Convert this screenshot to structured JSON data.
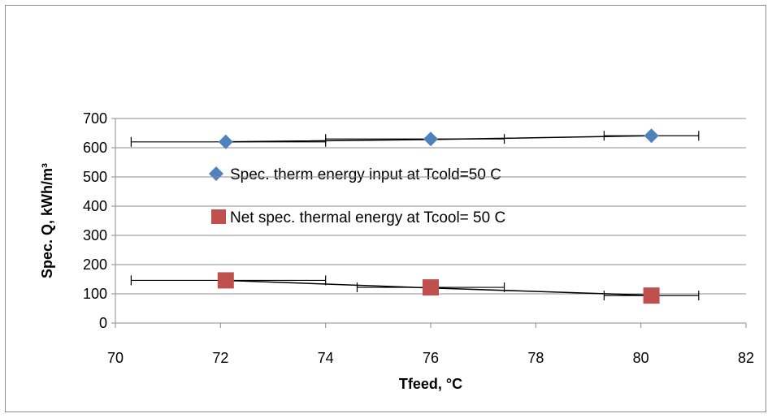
{
  "chart_data": {
    "type": "scatter",
    "xlabel": "Tfeed,  °C",
    "ylabel": "Spec. Q, kWh/m³",
    "xlim": [
      70,
      82
    ],
    "ylim": [
      0,
      700
    ],
    "xticks": [
      70,
      72,
      74,
      76,
      78,
      80,
      82
    ],
    "yticks": [
      0,
      100,
      200,
      300,
      400,
      500,
      600,
      700
    ],
    "grid": "horizontal",
    "legend_position": "top",
    "series": [
      {
        "name": "Spec. therm energy input at Tcold=50 C",
        "marker": "diamond",
        "color": "#4f81bd",
        "x": [
          72.1,
          76.0,
          80.2
        ],
        "y": [
          620,
          630,
          641
        ],
        "x_error_low": [
          70.3,
          74.0,
          79.3
        ],
        "x_error_high": [
          74.0,
          77.4,
          81.1
        ],
        "trend_y": [
          620,
          628,
          641
        ]
      },
      {
        "name": "Net spec. thermal energy at Tcool= 50 C",
        "marker": "square",
        "color": "#c0504d",
        "x": [
          72.1,
          76.0,
          80.2
        ],
        "y": [
          146,
          122,
          94
        ],
        "x_error_low": [
          70.3,
          74.6,
          79.3
        ],
        "x_error_high": [
          74.0,
          77.4,
          81.1
        ],
        "trend_y": [
          146,
          120,
          95
        ]
      }
    ]
  }
}
